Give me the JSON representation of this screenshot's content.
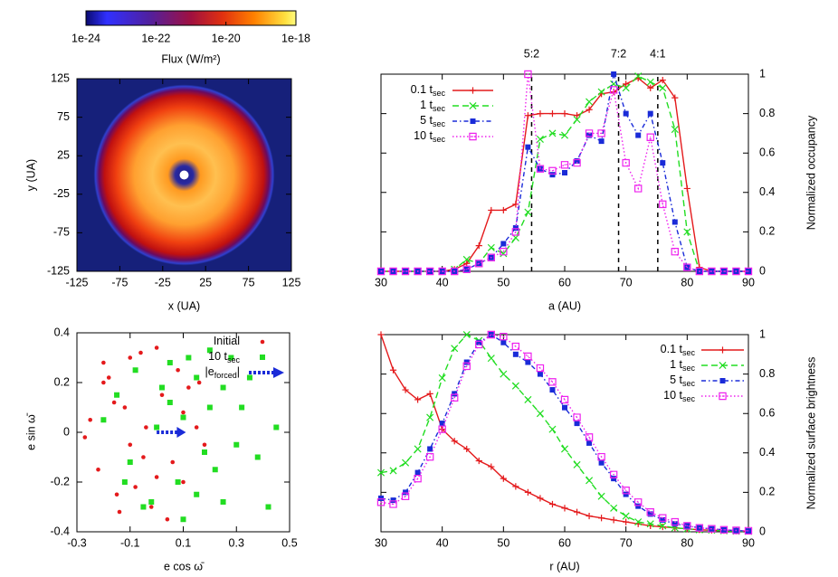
{
  "chart_data": [
    {
      "type": "image",
      "colorbar_label": "Flux (W/m²)",
      "colorbar_lim": [
        1e-24,
        1e-18
      ],
      "colorbar_ticks": [
        1e-24,
        1e-22,
        1e-20,
        1e-18
      ],
      "colorbar_log": true,
      "xlabel": "x (UA)",
      "ylabel": "y (UA)",
      "xlim": [
        -125,
        125
      ],
      "ylim": [
        -125,
        125
      ],
      "xticks": [
        -125,
        -75,
        -25,
        25,
        75,
        125
      ],
      "yticks": [
        -125,
        -75,
        -25,
        25,
        75,
        125
      ],
      "yaxis_side": "left"
    },
    {
      "type": "line",
      "xlabel": "a (AU)",
      "ylabel": "Normalized occupancy",
      "yaxis_side": "right",
      "xlim": [
        30,
        90
      ],
      "ylim": [
        0,
        1
      ],
      "xticks": [
        30,
        40,
        50,
        60,
        70,
        80,
        90
      ],
      "yticks": [
        0,
        0.2,
        0.4,
        0.6,
        0.8,
        1
      ],
      "resonances": [
        {
          "label": "5:2",
          "x": 54.6
        },
        {
          "label": "7:2",
          "x": 68.8
        },
        {
          "label": "4:1",
          "x": 75.2
        }
      ],
      "x": [
        30,
        32,
        34,
        36,
        38,
        40,
        42,
        44,
        46,
        48,
        50,
        52,
        54,
        56,
        58,
        60,
        62,
        64,
        66,
        68,
        70,
        72,
        74,
        76,
        78,
        80,
        82,
        84,
        86,
        88,
        90
      ],
      "series": [
        {
          "name": "0.1 t",
          "name_sub": "sec",
          "color": "#e41a1c",
          "marker": "plus",
          "dash": "solid",
          "values": [
            0,
            0,
            0,
            0,
            0,
            0,
            0.01,
            0.04,
            0.13,
            0.31,
            0.31,
            0.34,
            0.79,
            0.8,
            0.8,
            0.8,
            0.79,
            0.82,
            0.9,
            0.91,
            0.95,
            0.98,
            0.93,
            0.97,
            0.88,
            0.42,
            0.02,
            0,
            0,
            0,
            0
          ]
        },
        {
          "name": "1 t",
          "name_sub": "sec",
          "color": "#22dd22",
          "marker": "cross",
          "dash": "dashed",
          "values": [
            0,
            0,
            0,
            0,
            0,
            0,
            0.01,
            0.06,
            0.04,
            0.12,
            0.09,
            0.17,
            0.3,
            0.67,
            0.7,
            0.69,
            0.77,
            0.86,
            0.91,
            0.95,
            0.93,
            0.99,
            0.96,
            0.93,
            0.72,
            0.2,
            0,
            0,
            0,
            0,
            0
          ]
        },
        {
          "name": "5 t",
          "name_sub": "sec",
          "color": "#1a2bd8",
          "marker": "square",
          "dash": "dashdot",
          "values": [
            0,
            0,
            0,
            0,
            0,
            0,
            0,
            0.01,
            0.04,
            0.07,
            0.14,
            0.22,
            0.63,
            0.52,
            0.49,
            0.5,
            0.56,
            0.69,
            0.66,
            1,
            0.8,
            0.69,
            0.8,
            0.55,
            0.25,
            0.02,
            0,
            0,
            0,
            0,
            0
          ]
        },
        {
          "name": "10 t",
          "name_sub": "sec",
          "color": "#ee22ee",
          "marker": "opensquare",
          "dash": "dotted",
          "values": [
            0,
            0,
            0,
            0,
            0,
            0,
            0,
            0.01,
            0.04,
            0.07,
            0.1,
            0.2,
            1,
            0.52,
            0.51,
            0.54,
            0.55,
            0.7,
            0.7,
            0.92,
            0.55,
            0.42,
            0.68,
            0.34,
            0.1,
            0.02,
            0,
            0,
            0,
            0,
            0
          ]
        }
      ]
    },
    {
      "type": "scatter",
      "xlabel": "e cos ω̄",
      "ylabel": "e sin ω̄",
      "yaxis_side": "left",
      "xlim": [
        -0.3,
        0.5
      ],
      "ylim": [
        -0.4,
        0.4
      ],
      "xticks": [
        -0.3,
        -0.1,
        0.1,
        0.3,
        0.5
      ],
      "yticks": [
        -0.4,
        -0.2,
        0,
        0.2,
        0.4
      ],
      "series": [
        {
          "name": "Initial",
          "color": "#e41a1c",
          "marker": "dot",
          "x": [
            -0.25,
            -0.2,
            -0.15,
            -0.1,
            -0.05,
            0,
            0.05,
            0.1,
            0.15,
            -0.22,
            -0.12,
            -0.02,
            0.08,
            0.18,
            -0.18,
            -0.08,
            0.02,
            0.12,
            -0.27,
            -0.14,
            -0.04,
            0.06,
            0.16,
            -0.2,
            -0.1,
            0,
            0.1,
            -0.06,
            0.04,
            -0.16
          ],
          "y": [
            0.05,
            0.2,
            -0.25,
            0.3,
            -0.1,
            0.34,
            0.12,
            -0.2,
            0.02,
            -0.15,
            0.1,
            -0.3,
            0.25,
            -0.05,
            0.22,
            -0.22,
            0.15,
            0.18,
            -0.02,
            -0.32,
            0.02,
            -0.12,
            0.2,
            0.28,
            -0.05,
            -0.18,
            0.08,
            0.32,
            -0.35,
            0.12
          ]
        },
        {
          "name": "10 t",
          "name_sub": "sec",
          "color": "#22dd22",
          "marker": "square",
          "x": [
            -0.15,
            -0.05,
            0.05,
            0.15,
            0.25,
            0.3,
            -0.1,
            0,
            0.1,
            0.2,
            0.35,
            0.42,
            0.05,
            0.12,
            0.22,
            -0.2,
            -0.08,
            0.18,
            0.28,
            0.08,
            0.38,
            0.15,
            -0.02,
            0.25,
            0.1,
            0.32,
            -0.12,
            0.45,
            0.2,
            0.02
          ],
          "y": [
            0.15,
            -0.3,
            0.28,
            -0.25,
            0.18,
            -0.05,
            -0.12,
            0.02,
            -0.35,
            0.1,
            0.22,
            -0.3,
            0.12,
            0.3,
            -0.15,
            0.05,
            0.25,
            -0.08,
            0.3,
            -0.2,
            -0.1,
            0.22,
            -0.28,
            -0.28,
            0.06,
            0.1,
            -0.2,
            0.02,
            0.33,
            0.18
          ]
        },
        {
          "name": "|e",
          "name_sub": "forced",
          "name_end": "|",
          "color": "#1a2bd8",
          "marker": "arrow",
          "x": [
            0,
            0.11
          ],
          "y": [
            0,
            0
          ]
        }
      ]
    },
    {
      "type": "line",
      "xlabel": "r (AU)",
      "ylabel": "Normalized surface brightness",
      "yaxis_side": "right",
      "xlim": [
        30,
        90
      ],
      "ylim": [
        0,
        1
      ],
      "xticks": [
        30,
        40,
        50,
        60,
        70,
        80,
        90
      ],
      "yticks": [
        0,
        0.2,
        0.4,
        0.6,
        0.8,
        1
      ],
      "x": [
        30,
        32,
        34,
        36,
        38,
        40,
        42,
        44,
        46,
        48,
        50,
        52,
        54,
        56,
        58,
        60,
        62,
        64,
        66,
        68,
        70,
        72,
        74,
        76,
        78,
        80,
        82,
        84,
        86,
        88,
        90
      ],
      "series": [
        {
          "name": "0.1 t",
          "name_sub": "sec",
          "color": "#e41a1c",
          "marker": "plus",
          "dash": "solid",
          "values": [
            1,
            0.82,
            0.72,
            0.67,
            0.7,
            0.52,
            0.46,
            0.42,
            0.36,
            0.33,
            0.27,
            0.23,
            0.2,
            0.17,
            0.14,
            0.12,
            0.1,
            0.08,
            0.07,
            0.06,
            0.05,
            0.04,
            0.03,
            0.025,
            0.02,
            0.015,
            0.01,
            0.008,
            0.006,
            0.004,
            0.003
          ]
        },
        {
          "name": "1 t",
          "name_sub": "sec",
          "color": "#22dd22",
          "marker": "cross",
          "dash": "dashed",
          "values": [
            0.3,
            0.31,
            0.35,
            0.42,
            0.58,
            0.78,
            0.93,
            1,
            0.97,
            0.88,
            0.8,
            0.74,
            0.67,
            0.6,
            0.52,
            0.42,
            0.34,
            0.26,
            0.18,
            0.12,
            0.08,
            0.05,
            0.04,
            0.03,
            0.02,
            0.015,
            0.01,
            0.008,
            0.005,
            0.003,
            0.002
          ]
        },
        {
          "name": "5 t",
          "name_sub": "sec",
          "color": "#1a2bd8",
          "marker": "square",
          "dash": "dashdot",
          "values": [
            0.17,
            0.16,
            0.2,
            0.3,
            0.42,
            0.55,
            0.7,
            0.86,
            0.96,
            1,
            0.96,
            0.9,
            0.86,
            0.8,
            0.72,
            0.63,
            0.55,
            0.45,
            0.35,
            0.27,
            0.19,
            0.13,
            0.09,
            0.06,
            0.04,
            0.03,
            0.02,
            0.015,
            0.01,
            0.006,
            0.004
          ]
        },
        {
          "name": "10 t",
          "name_sub": "sec",
          "color": "#ee22ee",
          "marker": "opensquare",
          "dash": "dotted",
          "values": [
            0.15,
            0.14,
            0.18,
            0.27,
            0.38,
            0.52,
            0.68,
            0.84,
            0.95,
            1,
            0.99,
            0.94,
            0.89,
            0.83,
            0.76,
            0.67,
            0.58,
            0.48,
            0.38,
            0.29,
            0.21,
            0.15,
            0.1,
            0.07,
            0.05,
            0.03,
            0.02,
            0.015,
            0.01,
            0.007,
            0.005
          ]
        }
      ]
    }
  ]
}
